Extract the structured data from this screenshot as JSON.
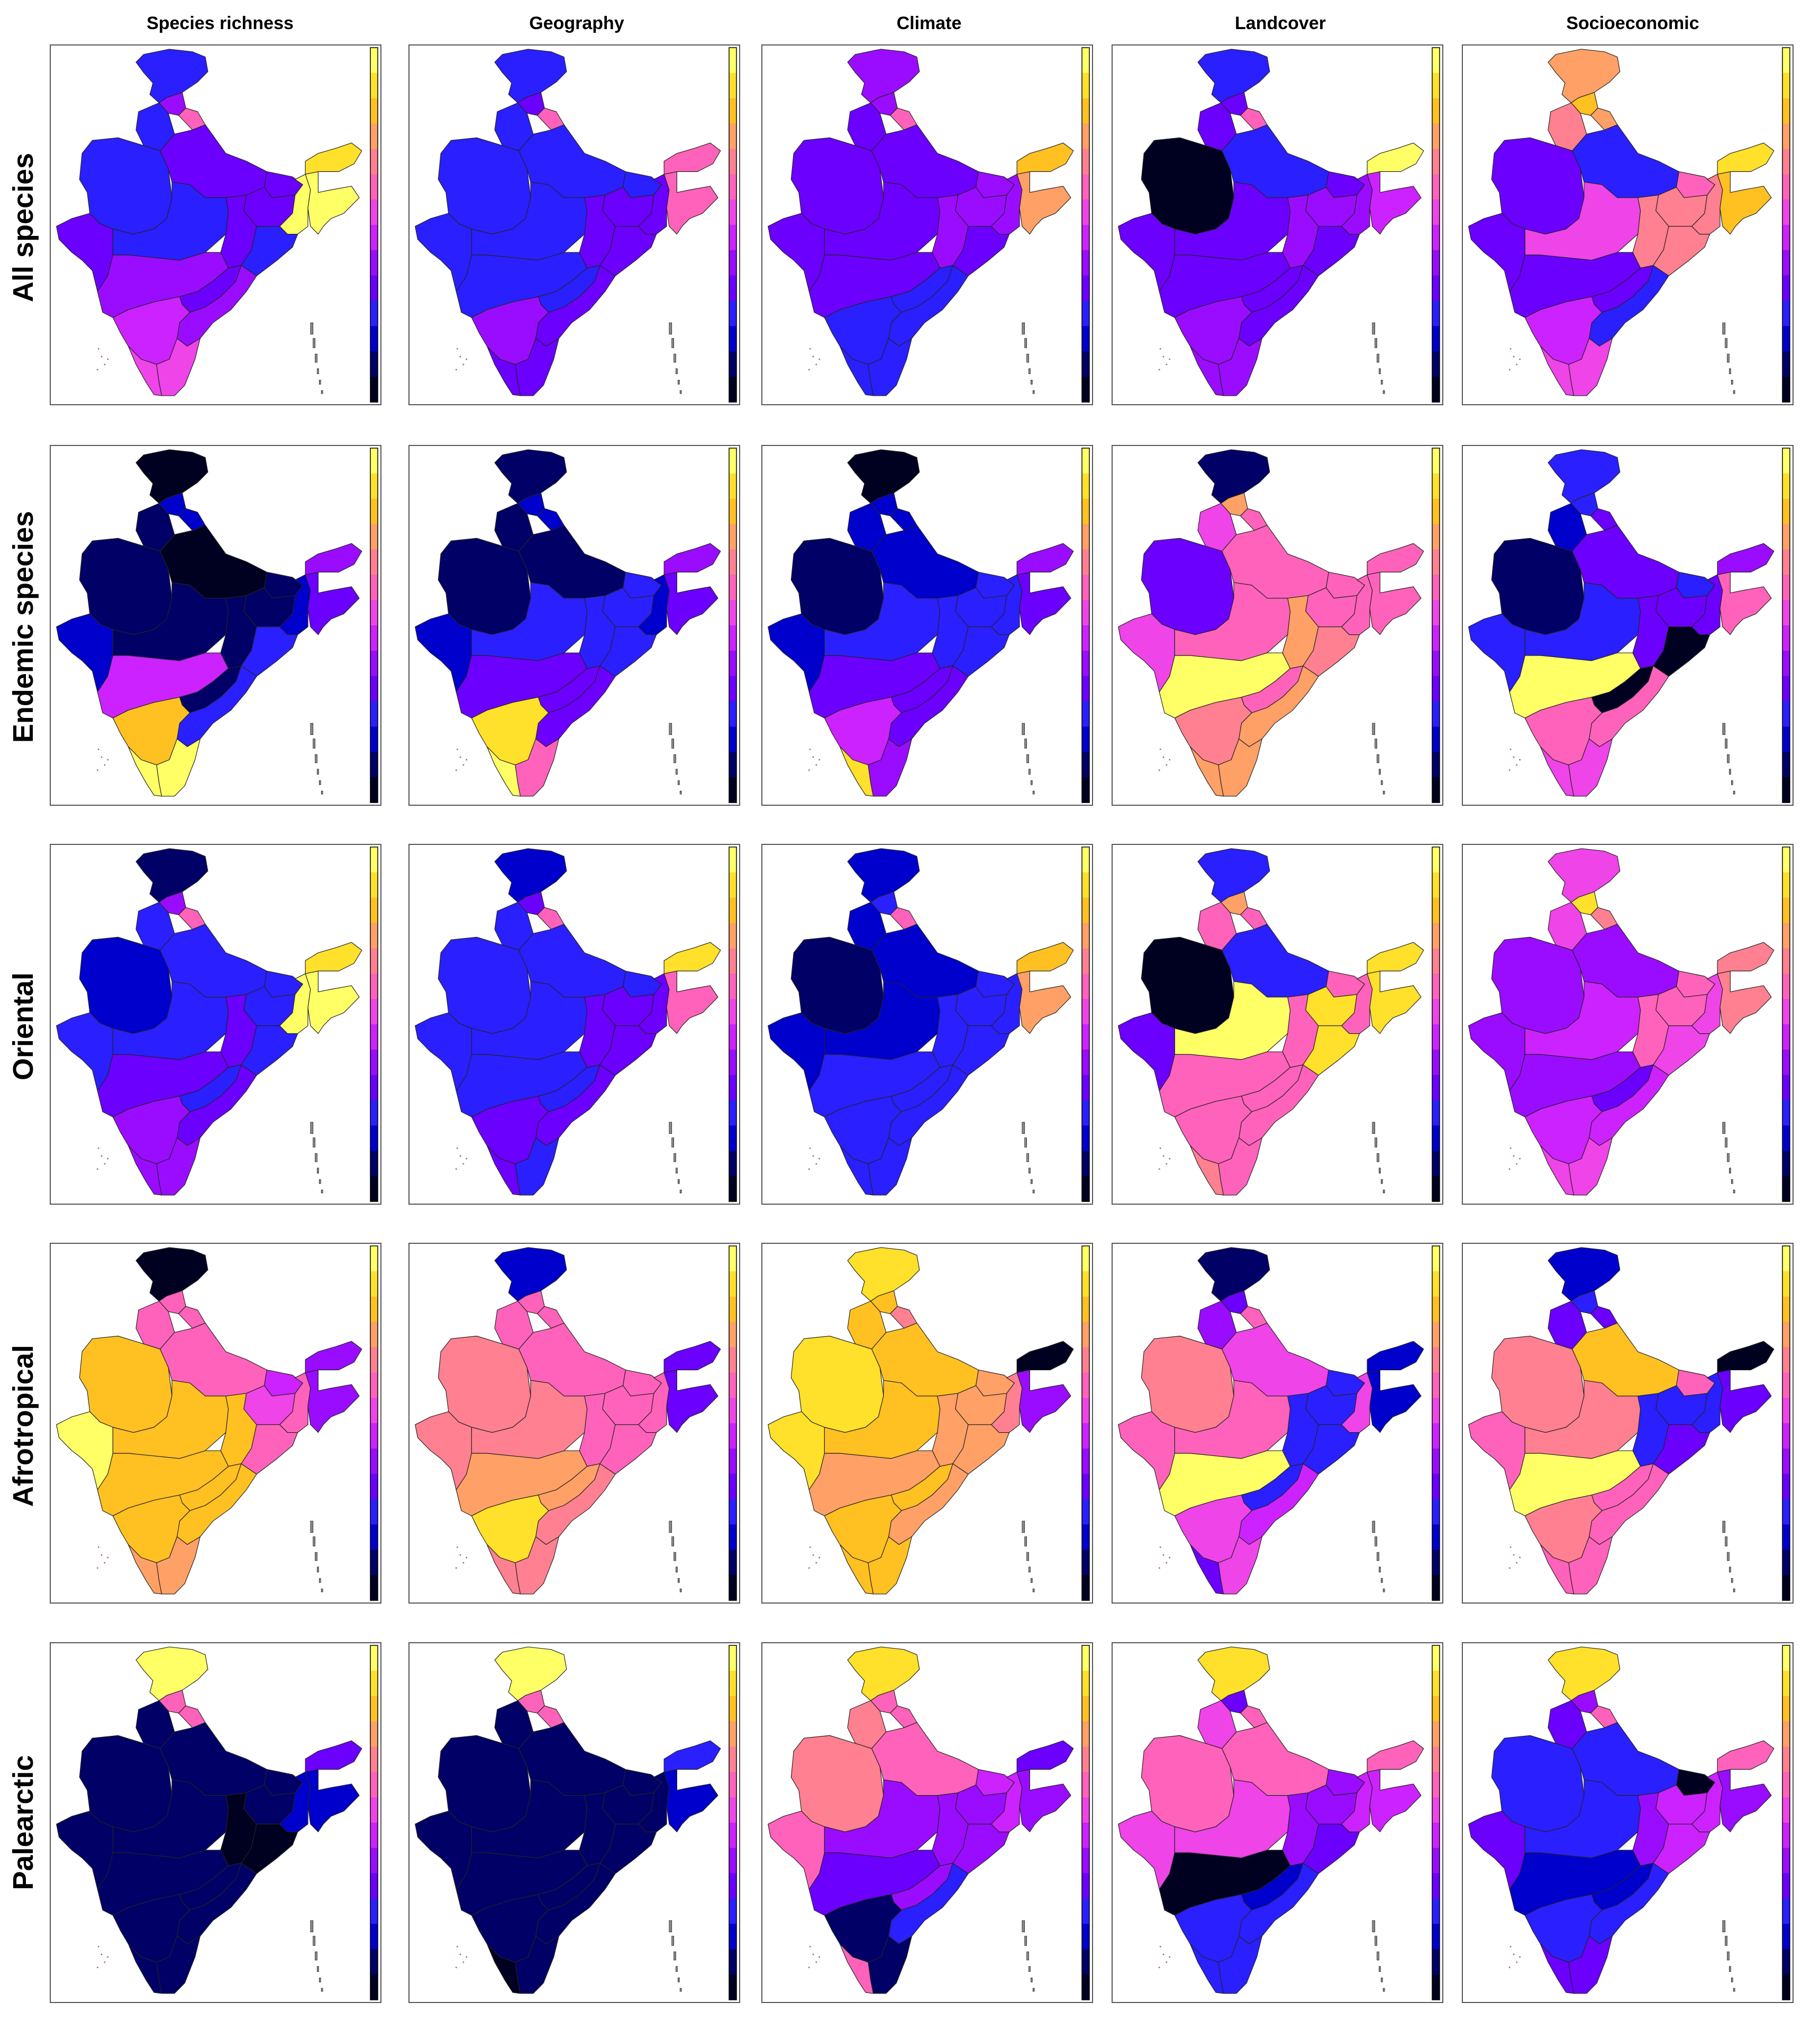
{
  "figure": {
    "columns": [
      "Species richness",
      "Geography",
      "Climate",
      "Landcover",
      "Socioeconomic"
    ],
    "rows": [
      "All species",
      "Endemic species",
      "Oriental",
      "Afrotropical",
      "Palearctic"
    ]
  },
  "palette": {
    "ramp": [
      "#000020",
      "#000066",
      "#0000cc",
      "#2a1fff",
      "#6b00ff",
      "#9a0cff",
      "#cc22ff",
      "#ee44e8",
      "#ff62ba",
      "#ff8090",
      "#ffa066",
      "#ffc022",
      "#ffe02a",
      "#ffff66"
    ]
  },
  "chart_data": {
    "type": "heatmap",
    "scale_note": "",
    "regions": [
      "kashmir",
      "himachal",
      "uttarakhand",
      "punjab",
      "rajasthan",
      "gujarat",
      "uttar_pradesh",
      "madhya_pradesh",
      "bihar",
      "jharkhand",
      "west_bengal",
      "chhattisgarh",
      "odisha",
      "maharashtra",
      "telangana",
      "andhra_pradesh",
      "karnataka",
      "tamil_nadu",
      "kerala",
      "northeast",
      "arunachal"
    ],
    "panels": [
      {
        "row": "All species",
        "column": "Species richness",
        "values": [
          0.28,
          0.4,
          0.6,
          0.25,
          0.25,
          0.3,
          0.3,
          0.28,
          0.3,
          0.3,
          1.0,
          0.3,
          0.28,
          0.38,
          0.3,
          0.38,
          0.45,
          0.52,
          0.52,
          0.95,
          0.92
        ]
      },
      {
        "row": "All species",
        "column": "Geography",
        "values": [
          0.22,
          0.35,
          0.6,
          0.22,
          0.22,
          0.25,
          0.25,
          0.25,
          0.28,
          0.32,
          0.32,
          0.32,
          0.32,
          0.28,
          0.28,
          0.3,
          0.38,
          0.3,
          0.3,
          0.6,
          0.62
        ]
      },
      {
        "row": "All species",
        "column": "Climate",
        "values": [
          0.4,
          0.42,
          0.6,
          0.3,
          0.3,
          0.35,
          0.35,
          0.35,
          0.4,
          0.38,
          0.38,
          0.38,
          0.35,
          0.3,
          0.25,
          0.25,
          0.25,
          0.22,
          0.22,
          0.78,
          0.8
        ]
      },
      {
        "row": "All species",
        "column": "Landcover",
        "values": [
          0.22,
          0.35,
          0.6,
          0.3,
          0.02,
          0.3,
          0.25,
          0.32,
          0.35,
          0.38,
          0.38,
          0.38,
          0.35,
          0.32,
          0.32,
          0.32,
          0.38,
          0.4,
          0.4,
          0.45,
          0.95
        ]
      },
      {
        "row": "All species",
        "column": "Socioeconomic",
        "values": [
          0.72,
          0.85,
          0.78,
          0.65,
          0.3,
          0.3,
          0.28,
          0.5,
          0.6,
          0.65,
          0.68,
          0.66,
          0.66,
          0.35,
          0.35,
          0.25,
          0.45,
          0.52,
          0.5,
          0.82,
          0.86
        ]
      },
      {
        "row": "Endemic species",
        "column": "Species richness",
        "values": [
          0.02,
          0.15,
          0.2,
          0.1,
          0.08,
          0.15,
          0.04,
          0.12,
          0.1,
          0.1,
          0.2,
          0.1,
          0.25,
          0.45,
          0.1,
          0.25,
          0.85,
          0.95,
          0.95,
          0.3,
          0.4
        ]
      },
      {
        "row": "Endemic species",
        "column": "Geography",
        "values": [
          0.1,
          0.15,
          0.2,
          0.1,
          0.1,
          0.15,
          0.1,
          0.25,
          0.25,
          0.25,
          0.2,
          0.25,
          0.25,
          0.3,
          0.3,
          0.3,
          0.92,
          0.6,
          0.95,
          0.35,
          0.4
        ]
      },
      {
        "row": "Endemic species",
        "column": "Climate",
        "values": [
          0.02,
          0.15,
          0.2,
          0.15,
          0.1,
          0.15,
          0.2,
          0.25,
          0.25,
          0.25,
          0.25,
          0.25,
          0.25,
          0.3,
          0.3,
          0.3,
          0.48,
          0.4,
          0.9,
          0.35,
          0.38
        ]
      },
      {
        "row": "Endemic species",
        "column": "Landcover",
        "values": [
          0.1,
          0.75,
          0.6,
          0.55,
          0.35,
          0.5,
          0.58,
          0.58,
          0.58,
          0.6,
          0.62,
          0.78,
          0.7,
          0.95,
          0.62,
          0.72,
          0.65,
          0.72,
          0.72,
          0.6,
          0.6
        ]
      },
      {
        "row": "Endemic species",
        "column": "Socioeconomic",
        "values": [
          0.22,
          0.25,
          0.35,
          0.2,
          0.1,
          0.25,
          0.3,
          0.25,
          0.25,
          0.3,
          0.35,
          0.3,
          0.02,
          0.95,
          0.02,
          0.6,
          0.6,
          0.55,
          0.55,
          0.6,
          0.38
        ]
      },
      {
        "row": "Oriental",
        "column": "Species richness",
        "values": [
          0.1,
          0.4,
          0.6,
          0.25,
          0.2,
          0.25,
          0.22,
          0.25,
          0.28,
          0.28,
          1.0,
          0.3,
          0.28,
          0.3,
          0.28,
          0.3,
          0.38,
          0.38,
          0.4,
          0.95,
          0.92
        ]
      },
      {
        "row": "Oriental",
        "column": "Geography",
        "values": [
          0.2,
          0.3,
          0.6,
          0.22,
          0.22,
          0.25,
          0.25,
          0.25,
          0.28,
          0.32,
          0.32,
          0.32,
          0.32,
          0.28,
          0.28,
          0.3,
          0.35,
          0.28,
          0.3,
          0.6,
          0.9
        ]
      },
      {
        "row": "Oriental",
        "column": "Climate",
        "values": [
          0.15,
          0.25,
          0.6,
          0.15,
          0.1,
          0.2,
          0.2,
          0.2,
          0.22,
          0.22,
          0.25,
          0.22,
          0.22,
          0.25,
          0.22,
          0.25,
          0.25,
          0.22,
          0.22,
          0.75,
          0.8
        ]
      },
      {
        "row": "Oriental",
        "column": "Landcover",
        "values": [
          0.22,
          0.72,
          0.58,
          0.58,
          0.0,
          0.3,
          0.22,
          0.95,
          0.6,
          0.9,
          0.62,
          0.6,
          0.9,
          0.58,
          0.58,
          0.62,
          0.6,
          0.58,
          0.7,
          0.92,
          0.92
        ]
      },
      {
        "row": "Oriental",
        "column": "Socioeconomic",
        "values": [
          0.55,
          0.88,
          0.65,
          0.5,
          0.38,
          0.42,
          0.38,
          0.45,
          0.58,
          0.6,
          0.55,
          0.62,
          0.55,
          0.4,
          0.3,
          0.45,
          0.45,
          0.5,
          0.5,
          0.7,
          0.68
        ]
      },
      {
        "row": "Afrotropical",
        "column": "Species richness",
        "values": [
          0.02,
          0.62,
          0.6,
          0.6,
          0.85,
          0.95,
          0.6,
          0.8,
          0.45,
          0.52,
          0.6,
          0.82,
          0.6,
          0.82,
          0.82,
          0.82,
          0.8,
          0.75,
          0.75,
          0.4,
          0.38
        ]
      },
      {
        "row": "Afrotropical",
        "column": "Geography",
        "values": [
          0.2,
          0.62,
          0.58,
          0.62,
          0.7,
          0.7,
          0.62,
          0.68,
          0.6,
          0.6,
          0.62,
          0.62,
          0.62,
          0.72,
          0.72,
          0.7,
          0.92,
          0.7,
          0.7,
          0.3,
          0.3
        ]
      },
      {
        "row": "Afrotropical",
        "column": "Climate",
        "values": [
          0.9,
          0.85,
          0.68,
          0.8,
          0.92,
          0.9,
          0.8,
          0.82,
          0.75,
          0.72,
          0.7,
          0.72,
          0.72,
          0.72,
          0.82,
          0.72,
          0.8,
          0.8,
          0.8,
          0.4,
          0.02
        ]
      },
      {
        "row": "Afrotropical",
        "column": "Landcover",
        "values": [
          0.1,
          0.3,
          0.58,
          0.4,
          0.7,
          0.6,
          0.5,
          0.6,
          0.25,
          0.25,
          0.55,
          0.25,
          0.25,
          0.95,
          0.22,
          0.45,
          0.55,
          0.5,
          0.3,
          0.15,
          0.2
        ]
      },
      {
        "row": "Afrotropical",
        "column": "Socioeconomic",
        "values": [
          0.2,
          0.25,
          0.3,
          0.3,
          0.7,
          0.58,
          0.85,
          0.7,
          0.58,
          0.22,
          0.25,
          0.22,
          0.35,
          0.95,
          0.62,
          0.58,
          0.7,
          0.62,
          0.62,
          0.3,
          0.02
        ]
      },
      {
        "row": "Palearctic",
        "column": "Species richness",
        "values": [
          0.95,
          0.6,
          0.58,
          0.08,
          0.08,
          0.08,
          0.08,
          0.08,
          0.1,
          0.08,
          0.2,
          0.0,
          0.05,
          0.08,
          0.08,
          0.08,
          0.08,
          0.08,
          0.08,
          0.2,
          0.3
        ]
      },
      {
        "row": "Palearctic",
        "column": "Geography",
        "values": [
          0.95,
          0.62,
          0.6,
          0.08,
          0.08,
          0.08,
          0.08,
          0.08,
          0.08,
          0.08,
          0.1,
          0.08,
          0.08,
          0.08,
          0.08,
          0.08,
          0.08,
          0.08,
          0.02,
          0.2,
          0.25
        ]
      },
      {
        "row": "Palearctic",
        "column": "Climate",
        "values": [
          0.9,
          0.62,
          0.6,
          0.65,
          0.68,
          0.6,
          0.6,
          0.42,
          0.45,
          0.4,
          0.45,
          0.42,
          0.4,
          0.3,
          0.38,
          0.25,
          0.08,
          0.12,
          0.58,
          0.4,
          0.35
        ]
      },
      {
        "row": "Palearctic",
        "column": "Landcover",
        "values": [
          0.92,
          0.3,
          0.6,
          0.55,
          0.58,
          0.5,
          0.58,
          0.5,
          0.4,
          0.4,
          0.45,
          0.38,
          0.35,
          0.05,
          0.2,
          0.25,
          0.22,
          0.22,
          0.22,
          0.45,
          0.6
        ]
      },
      {
        "row": "Palearctic",
        "column": "Socioeconomic",
        "values": [
          0.92,
          0.4,
          0.6,
          0.3,
          0.25,
          0.3,
          0.25,
          0.25,
          0.05,
          0.45,
          0.45,
          0.4,
          0.45,
          0.2,
          0.2,
          0.25,
          0.25,
          0.3,
          0.3,
          0.4,
          0.6
        ]
      }
    ]
  }
}
